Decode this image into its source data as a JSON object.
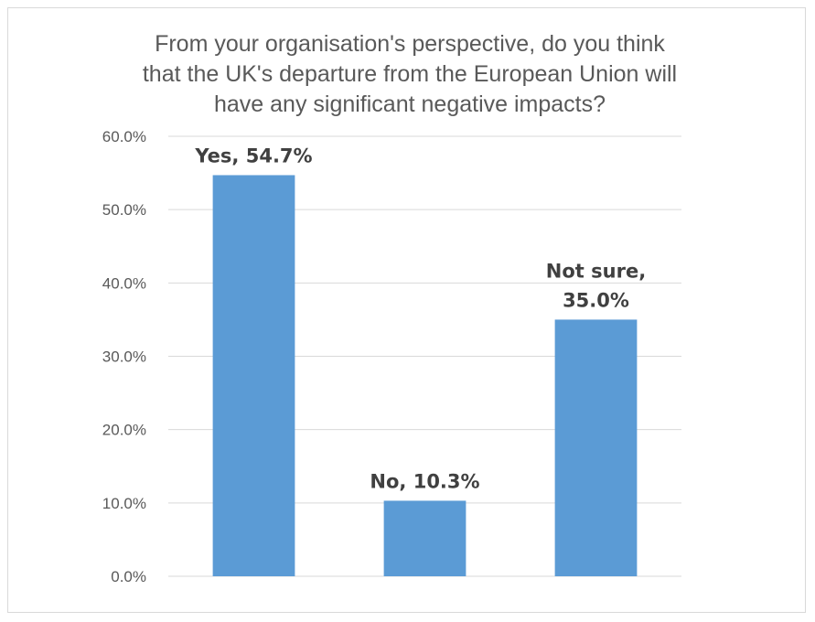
{
  "chart_data": {
    "type": "bar",
    "title": "From your organisation's perspective, do you think that the UK's departure from the European Union will have any significant negative impacts?",
    "title_lines": [
      "From your organisation's perspective, do you think",
      "that the UK's departure from the European Union will",
      "have any significant negative impacts?"
    ],
    "categories": [
      "Yes",
      "No",
      "Not sure"
    ],
    "values": [
      54.7,
      10.3,
      35.0
    ],
    "data_labels": [
      [
        "Yes, 54.7%"
      ],
      [
        "No, 10.3%"
      ],
      [
        "Not sure,",
        "35.0%"
      ]
    ],
    "ylim": [
      0,
      60
    ],
    "y_ticks": [
      "0.0%",
      "10.0%",
      "20.0%",
      "30.0%",
      "40.0%",
      "50.0%",
      "60.0%"
    ],
    "grid": true,
    "legend": "none",
    "bar_color": "#5b9bd5",
    "grid_color": "#d9d9d9"
  }
}
